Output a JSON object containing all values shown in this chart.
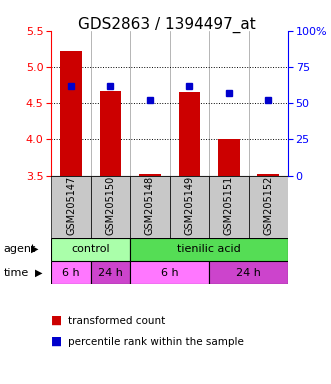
{
  "title": "GDS2863 / 1394497_at",
  "samples": [
    "GSM205147",
    "GSM205150",
    "GSM205148",
    "GSM205149",
    "GSM205151",
    "GSM205152"
  ],
  "bar_values": [
    5.22,
    4.67,
    3.52,
    4.65,
    4.01,
    3.52
  ],
  "bar_bottom": 3.5,
  "percentile_values": [
    62,
    62,
    52,
    62,
    57,
    52
  ],
  "ylim_left": [
    3.5,
    5.5
  ],
  "ylim_right": [
    0,
    100
  ],
  "yticks_left": [
    3.5,
    4.0,
    4.5,
    5.0,
    5.5
  ],
  "yticks_right": [
    0,
    25,
    50,
    75,
    100
  ],
  "bar_color": "#cc0000",
  "dot_color": "#0000cc",
  "agent_groups": [
    {
      "label": "control",
      "start": 0,
      "end": 2,
      "color": "#aaffaa"
    },
    {
      "label": "tienilic acid",
      "start": 2,
      "end": 6,
      "color": "#55dd55"
    }
  ],
  "time_groups": [
    {
      "label": "6 h",
      "start": 0,
      "end": 1,
      "color": "#ff77ff"
    },
    {
      "label": "24 h",
      "start": 1,
      "end": 2,
      "color": "#cc44cc"
    },
    {
      "label": "6 h",
      "start": 2,
      "end": 4,
      "color": "#ff77ff"
    },
    {
      "label": "24 h",
      "start": 4,
      "end": 6,
      "color": "#cc44cc"
    }
  ],
  "legend_items": [
    {
      "label": "transformed count",
      "color": "#cc0000"
    },
    {
      "label": "percentile rank within the sample",
      "color": "#0000cc"
    }
  ],
  "agent_label": "agent",
  "time_label": "time",
  "title_fontsize": 11,
  "tick_fontsize": 8,
  "sample_fontsize": 7,
  "row_fontsize": 8,
  "legend_fontsize": 7.5,
  "bg_color": "#c8c8c8"
}
